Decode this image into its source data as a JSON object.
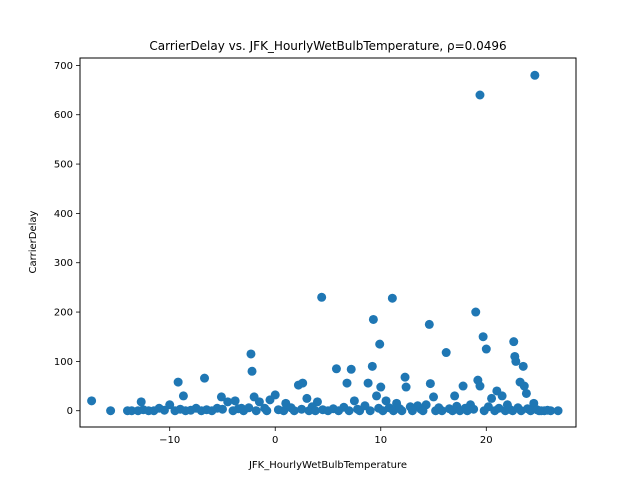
{
  "chart_data": {
    "type": "scatter",
    "title": "CarrierDelay vs. JFK_HourlyWetBulbTemperature, ρ=0.0496",
    "xlabel": "JFK_HourlyWetBulbTemperature",
    "ylabel": "CarrierDelay",
    "xlim": [
      -18.5,
      28.5
    ],
    "ylim": [
      -33,
      715
    ],
    "xticks": [
      -10,
      0,
      10,
      20
    ],
    "yticks": [
      0,
      100,
      200,
      300,
      400,
      500,
      600,
      700
    ],
    "marker_color": "#1f77b4",
    "grid": false,
    "legend": "none",
    "points": [
      [
        -17.4,
        20
      ],
      [
        -15.6,
        0
      ],
      [
        -14.0,
        0
      ],
      [
        -13.6,
        0
      ],
      [
        -12.7,
        18
      ],
      [
        -12.0,
        0
      ],
      [
        -11.0,
        5
      ],
      [
        -10.0,
        12
      ],
      [
        -9.2,
        58
      ],
      [
        -8.7,
        30
      ],
      [
        -7.5,
        5
      ],
      [
        -6.7,
        66
      ],
      [
        -5.5,
        5
      ],
      [
        -5.1,
        28
      ],
      [
        -4.5,
        18
      ],
      [
        -3.8,
        20
      ],
      [
        -3.2,
        5
      ],
      [
        -2.3,
        115
      ],
      [
        -2.2,
        80
      ],
      [
        -2.0,
        28
      ],
      [
        -1.5,
        18
      ],
      [
        -0.5,
        22
      ],
      [
        0.0,
        32
      ],
      [
        1.0,
        15
      ],
      [
        2.2,
        52
      ],
      [
        2.6,
        56
      ],
      [
        3.0,
        25
      ],
      [
        4.0,
        18
      ],
      [
        4.4,
        230
      ],
      [
        5.8,
        85
      ],
      [
        6.8,
        56
      ],
      [
        7.2,
        84
      ],
      [
        7.5,
        20
      ],
      [
        8.8,
        56
      ],
      [
        9.2,
        90
      ],
      [
        9.3,
        185
      ],
      [
        9.6,
        30
      ],
      [
        9.9,
        135
      ],
      [
        10.0,
        48
      ],
      [
        10.5,
        20
      ],
      [
        11.1,
        228
      ],
      [
        11.5,
        15
      ],
      [
        12.3,
        68
      ],
      [
        12.4,
        48
      ],
      [
        13.5,
        10
      ],
      [
        14.3,
        12
      ],
      [
        14.6,
        175
      ],
      [
        14.7,
        55
      ],
      [
        15.0,
        28
      ],
      [
        16.2,
        118
      ],
      [
        17.0,
        30
      ],
      [
        17.8,
        50
      ],
      [
        18.5,
        12
      ],
      [
        19.0,
        200
      ],
      [
        19.2,
        62
      ],
      [
        19.4,
        50
      ],
      [
        19.4,
        640
      ],
      [
        19.7,
        150
      ],
      [
        20.0,
        125
      ],
      [
        20.5,
        25
      ],
      [
        21.0,
        40
      ],
      [
        21.5,
        30
      ],
      [
        22.0,
        12
      ],
      [
        22.6,
        140
      ],
      [
        22.7,
        110
      ],
      [
        22.8,
        100
      ],
      [
        23.2,
        58
      ],
      [
        23.5,
        90
      ],
      [
        23.6,
        50
      ],
      [
        23.8,
        35
      ],
      [
        24.5,
        15
      ],
      [
        24.6,
        680
      ],
      [
        25.0,
        0
      ],
      [
        25.5,
        0
      ],
      [
        26.1,
        0
      ],
      [
        26.8,
        0
      ],
      [
        -13.0,
        0
      ],
      [
        -12.5,
        2
      ],
      [
        -11.5,
        0
      ],
      [
        -10.5,
        1
      ],
      [
        -9.5,
        0
      ],
      [
        -9.0,
        3
      ],
      [
        -8.5,
        0
      ],
      [
        -8.0,
        1
      ],
      [
        -7.0,
        0
      ],
      [
        -6.5,
        2
      ],
      [
        -6.0,
        0
      ],
      [
        -5.0,
        3
      ],
      [
        -4.0,
        0
      ],
      [
        -3.5,
        4
      ],
      [
        -3.0,
        0
      ],
      [
        -2.5,
        6
      ],
      [
        -1.8,
        0
      ],
      [
        -1.0,
        5
      ],
      [
        -0.8,
        0
      ],
      [
        0.3,
        2
      ],
      [
        0.8,
        0
      ],
      [
        1.5,
        6
      ],
      [
        1.8,
        0
      ],
      [
        2.5,
        3
      ],
      [
        3.2,
        0
      ],
      [
        3.5,
        8
      ],
      [
        3.8,
        0
      ],
      [
        4.5,
        2
      ],
      [
        5.0,
        0
      ],
      [
        5.5,
        4
      ],
      [
        6.0,
        0
      ],
      [
        6.5,
        7
      ],
      [
        7.0,
        0
      ],
      [
        7.8,
        3
      ],
      [
        8.0,
        0
      ],
      [
        8.5,
        10
      ],
      [
        9.0,
        0
      ],
      [
        9.8,
        5
      ],
      [
        10.2,
        0
      ],
      [
        10.8,
        6
      ],
      [
        11.2,
        0
      ],
      [
        11.8,
        4
      ],
      [
        12.0,
        0
      ],
      [
        12.8,
        8
      ],
      [
        13.0,
        0
      ],
      [
        13.8,
        3
      ],
      [
        14.0,
        0
      ],
      [
        15.2,
        0
      ],
      [
        15.5,
        6
      ],
      [
        15.8,
        0
      ],
      [
        16.5,
        4
      ],
      [
        16.8,
        0
      ],
      [
        17.2,
        9
      ],
      [
        17.5,
        0
      ],
      [
        18.0,
        5
      ],
      [
        18.2,
        0
      ],
      [
        18.8,
        3
      ],
      [
        19.8,
        0
      ],
      [
        20.2,
        8
      ],
      [
        20.8,
        0
      ],
      [
        21.2,
        5
      ],
      [
        21.8,
        0
      ],
      [
        22.2,
        3
      ],
      [
        22.5,
        0
      ],
      [
        23.0,
        6
      ],
      [
        23.3,
        0
      ],
      [
        23.9,
        4
      ],
      [
        24.2,
        0
      ],
      [
        24.8,
        2
      ],
      [
        25.2,
        0
      ],
      [
        25.8,
        1
      ]
    ]
  }
}
